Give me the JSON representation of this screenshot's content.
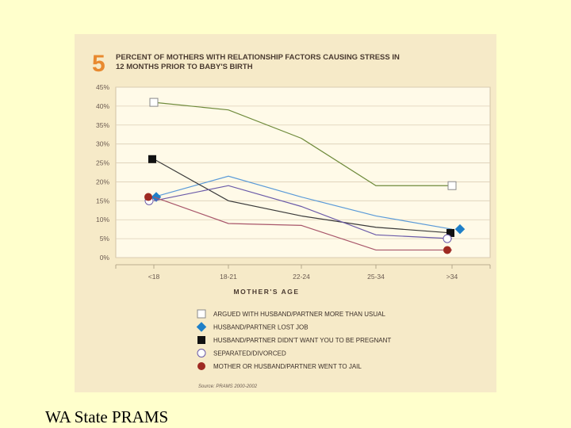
{
  "caption": "WA State PRAMS",
  "chart_data": {
    "type": "line",
    "figure_number": "5",
    "title_lines": [
      "PERCENT OF MOTHERS WITH RELATIONSHIP FACTORS CAUSING STRESS IN",
      "12 MONTHS PRIOR TO BABY'S BIRTH"
    ],
    "xlabel": "MOTHER'S AGE",
    "ylabel": "",
    "categories": [
      "<18",
      "18-21",
      "22-24",
      "25-34",
      ">34"
    ],
    "y_ticks": [
      "0%",
      "5%",
      "10%",
      "15%",
      "20%",
      "25%",
      "30%",
      "35%",
      "40%",
      "45%"
    ],
    "ylim": [
      0,
      45
    ],
    "grid": true,
    "legend_position": "bottom",
    "source": "Source: PRAMS 2000-2002",
    "series": [
      {
        "name": "ARGUED WITH HUSBAND/PARTNER MORE THAN USUAL",
        "values": [
          41,
          39,
          31.5,
          19,
          19
        ],
        "color": "#6E8A3A",
        "marker": "open-square"
      },
      {
        "name": "HUSBAND/PARTNER LOST JOB",
        "values": [
          16,
          21.5,
          16,
          11,
          7.5
        ],
        "color": "#5A9AD8",
        "marker": "blue-diamond"
      },
      {
        "name": "HUSBAND/PARTNER DIDN'T WANT YOU TO BE PREGNANT",
        "values": [
          26,
          15,
          11,
          8,
          6.5
        ],
        "color": "#3a3a3a",
        "marker": "black-square"
      },
      {
        "name": "SEPARATED/DIVORCED",
        "values": [
          15,
          19,
          13.5,
          6,
          5
        ],
        "color": "#6A5AA8",
        "marker": "open-circle"
      },
      {
        "name": "MOTHER OR HUSBAND/PARTNER WENT TO JAIL",
        "values": [
          16,
          9,
          8.5,
          2,
          2
        ],
        "color": "#A8566A",
        "marker": "red-circle"
      }
    ]
  }
}
